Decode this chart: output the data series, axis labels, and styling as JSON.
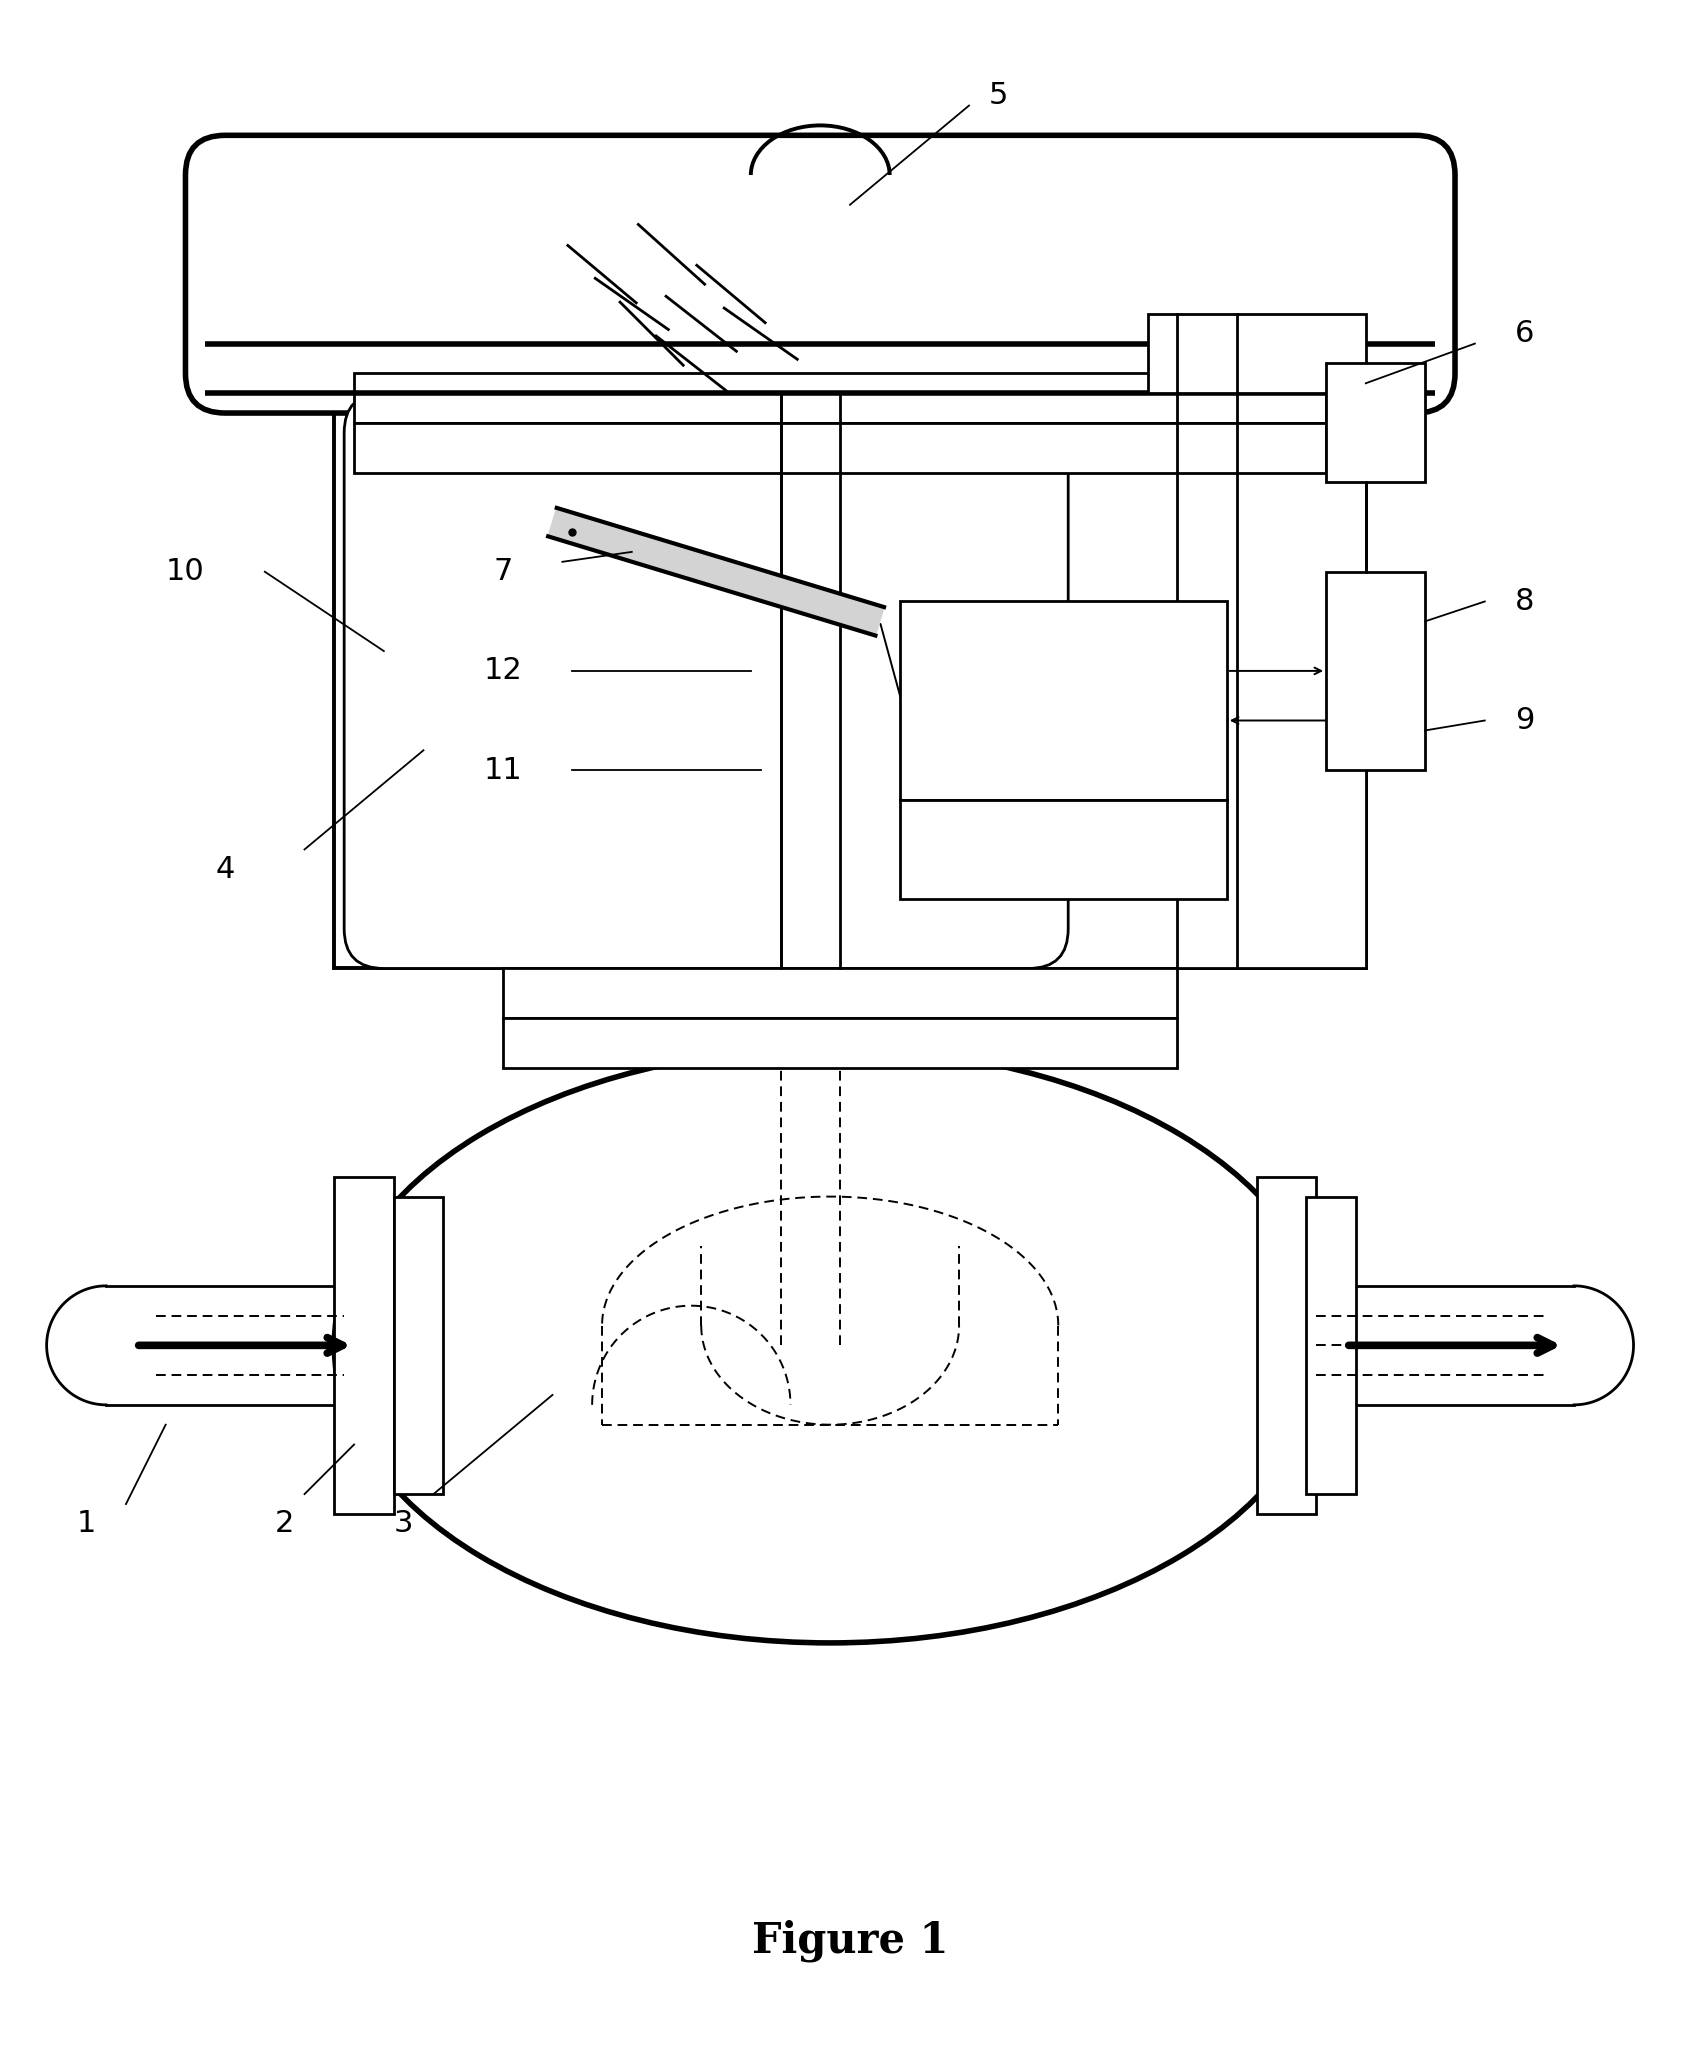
{
  "bg_color": "#ffffff",
  "line_color": "#000000",
  "figure_label": "Figure 1",
  "label_fontsize": 30,
  "annotation_fontsize": 22,
  "fig_w": 17.0,
  "fig_h": 20.48,
  "dpi": 100
}
